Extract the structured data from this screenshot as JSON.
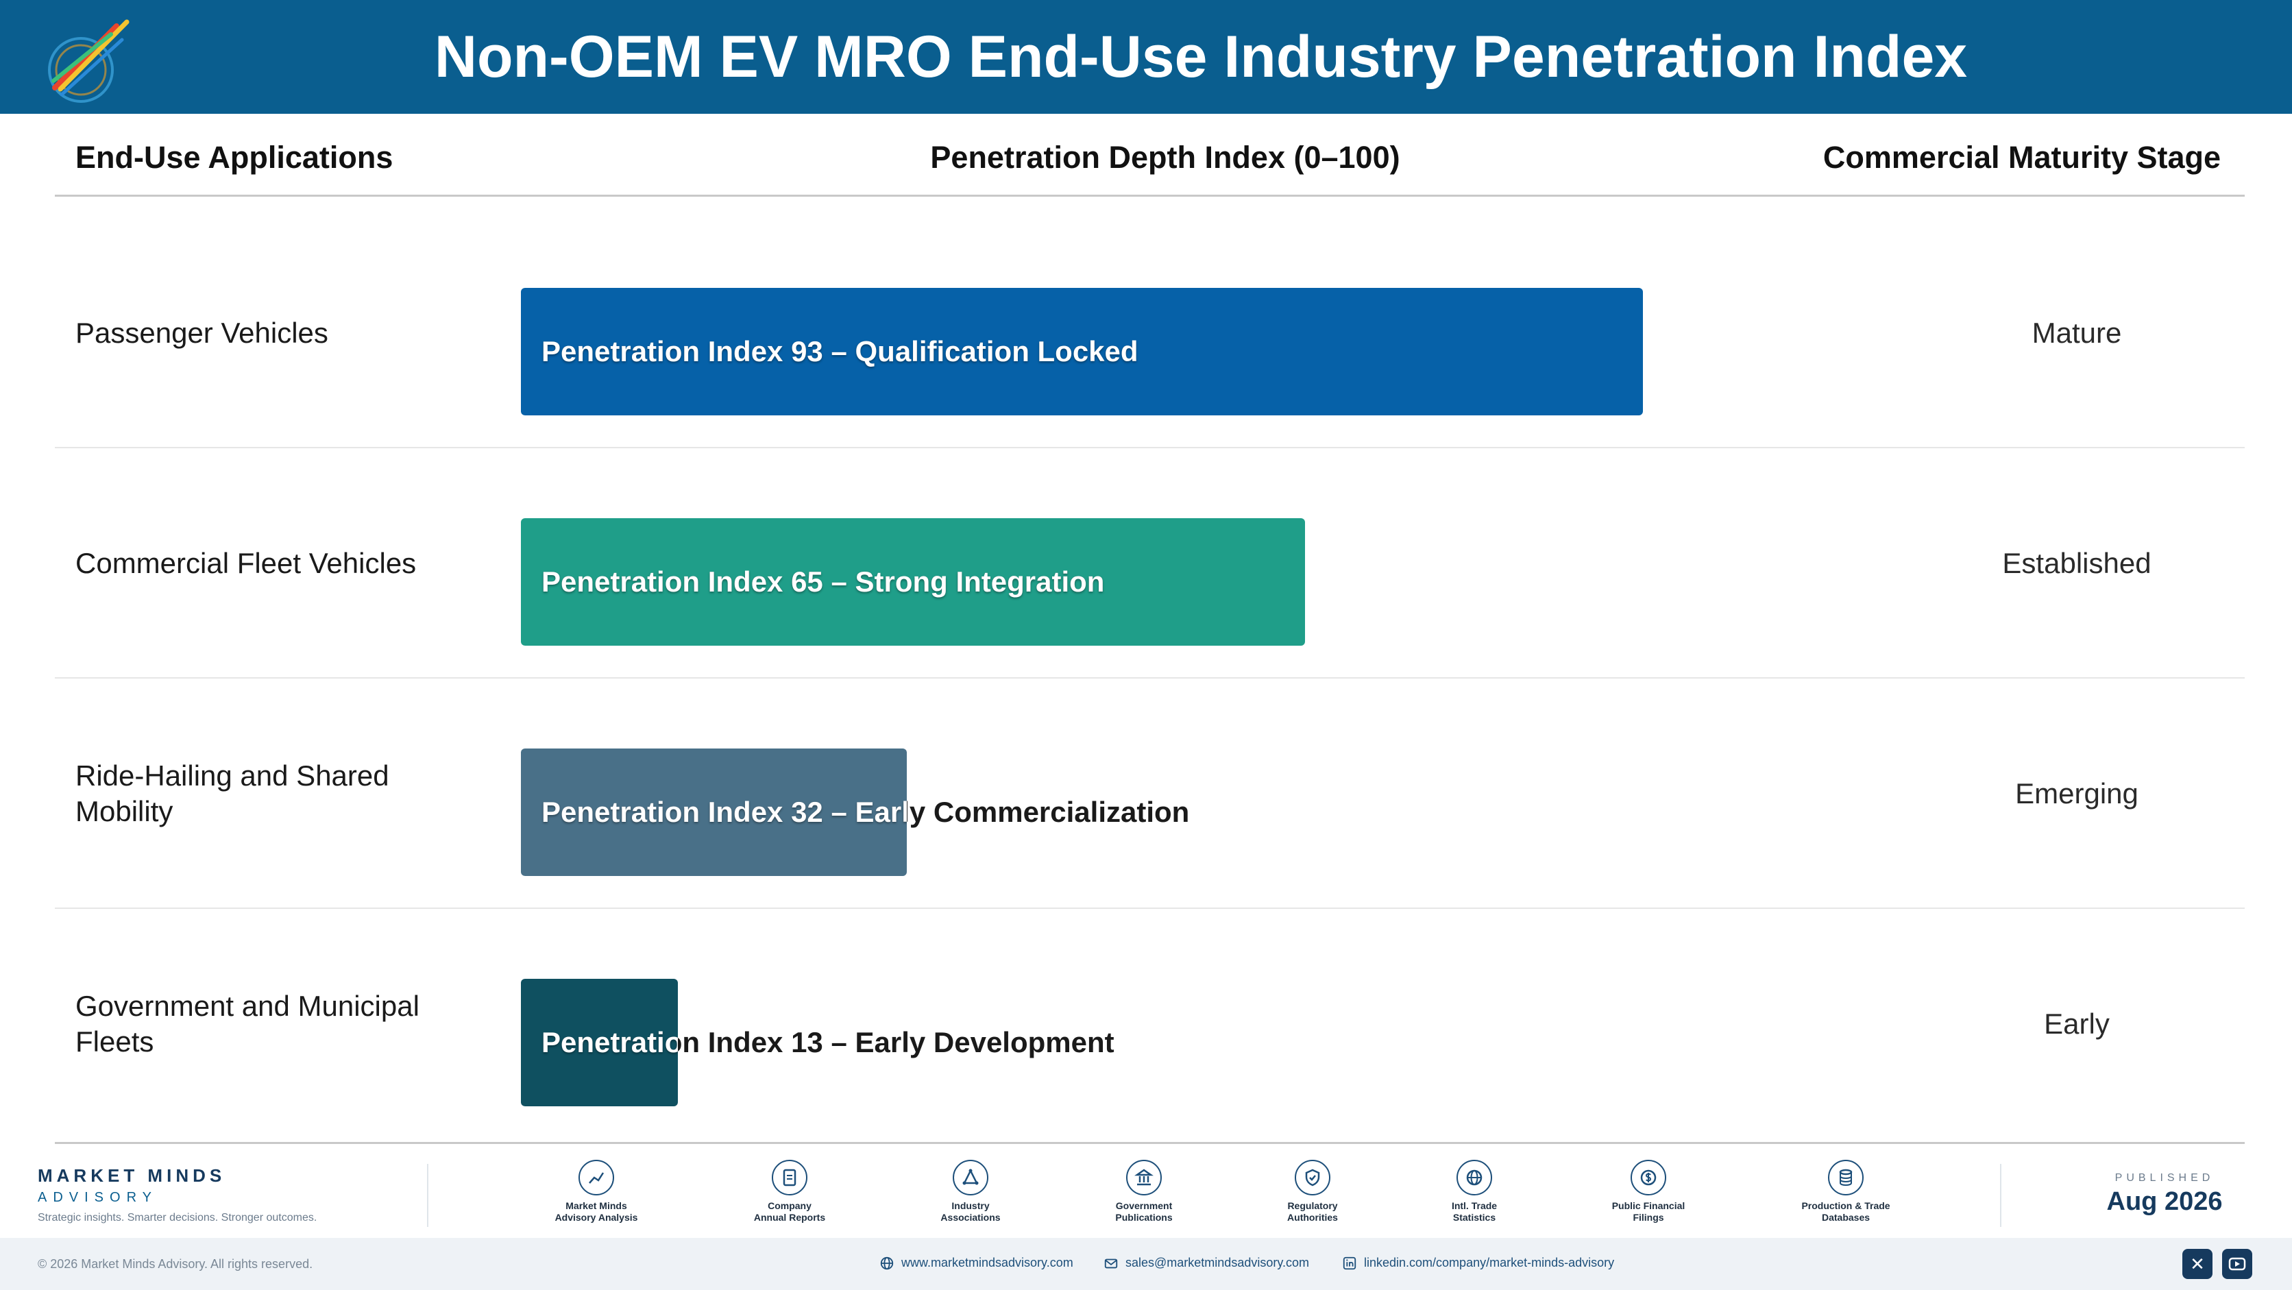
{
  "header": {
    "title": "Non-OEM EV MRO End-Use Industry Penetration Index",
    "logo_icon": "pencils-logo-icon"
  },
  "columns": {
    "apps": "End-Use Applications",
    "depth": "Penetration Depth Index (0–100)",
    "stage": "Commercial Maturity Stage"
  },
  "chart_data": {
    "type": "bar",
    "orientation": "horizontal",
    "xlim": [
      0,
      100
    ],
    "categories": [
      "Passenger Vehicles",
      "Commercial Fleet Vehicles",
      "Ride-Hailing and Shared Mobility",
      "Government and Municipal Fleets"
    ],
    "values": [
      93,
      65,
      32,
      13
    ],
    "bar_labels": [
      "Penetration Index 93 – Qualification Locked",
      "Penetration Index 65 – Strong Integration",
      "Penetration Index 32 – Early Commercialization",
      "Penetration Index 13 – Early Development"
    ],
    "stages": [
      "Mature",
      "Established",
      "Emerging",
      "Early"
    ],
    "colors": [
      "#0661a8",
      "#1f9e89",
      "#497088",
      "#0f5060"
    ]
  },
  "footer": {
    "brand_name": "MARKET MINDS",
    "brand_sub": "ADVISORY",
    "tagline": "Strategic insights. Smarter decisions. Stronger outcomes.",
    "sources": [
      {
        "line1": "Market Minds",
        "line2": "Advisory Analysis",
        "icon": "trend-chart-icon"
      },
      {
        "line1": "Company",
        "line2": "Annual Reports",
        "icon": "document-icon"
      },
      {
        "line1": "Industry",
        "line2": "Associations",
        "icon": "network-icon"
      },
      {
        "line1": "Government",
        "line2": "Publications",
        "icon": "government-building-icon"
      },
      {
        "line1": "Regulatory",
        "line2": "Authorities",
        "icon": "shield-check-icon"
      },
      {
        "line1": "Intl. Trade",
        "line2": "Statistics",
        "icon": "globe-icon"
      },
      {
        "line1": "Public Financial",
        "line2": "Filings",
        "icon": "dollar-coin-icon"
      },
      {
        "line1": "Production & Trade",
        "line2": "Databases",
        "icon": "database-icon"
      }
    ],
    "published_label": "PUBLISHED",
    "published_date": "Aug 2026",
    "copyright": "© 2026 Market Minds Advisory. All rights reserved.",
    "website": "www.marketmindsadvisory.com",
    "email": "sales@marketmindsadvisory.com",
    "linkedin": "linkedin.com/company/market-minds-advisory",
    "social": [
      "x-icon",
      "youtube-icon"
    ]
  }
}
